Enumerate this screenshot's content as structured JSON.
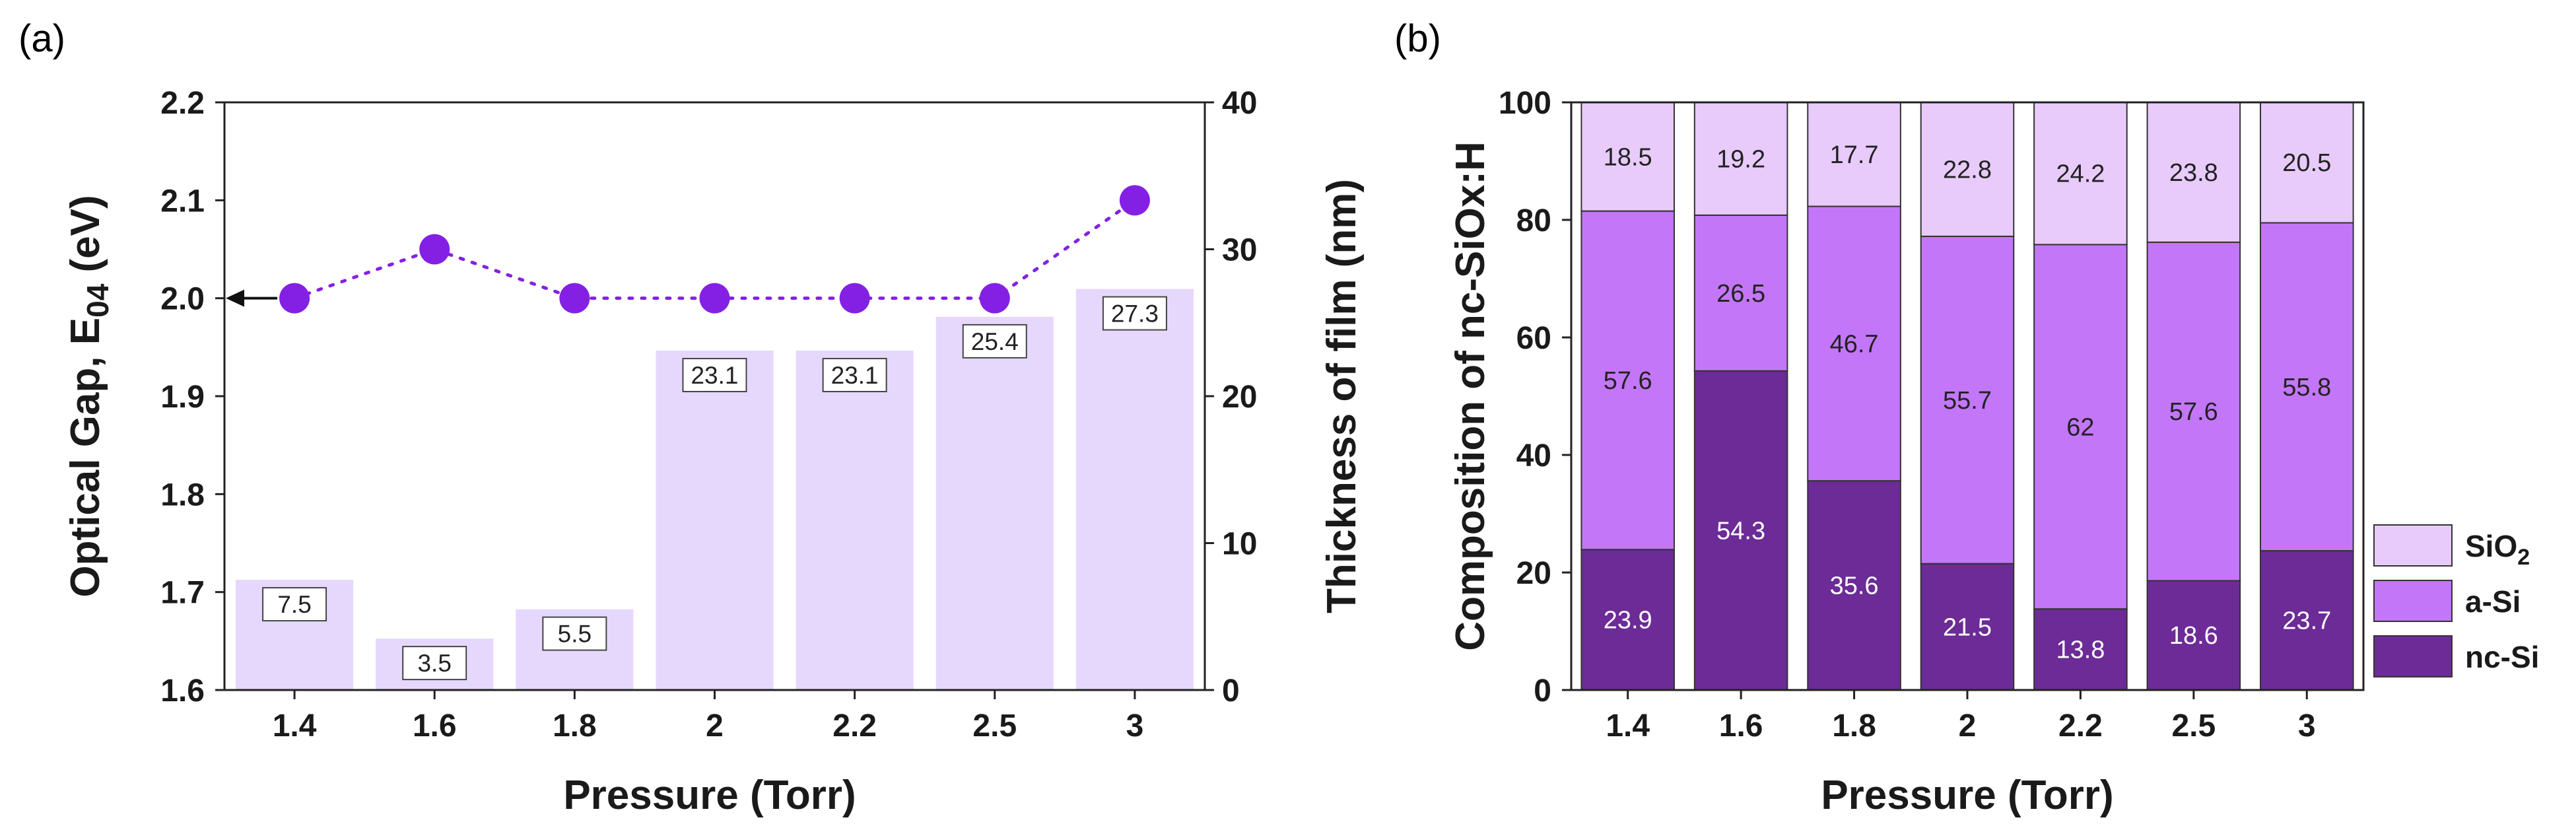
{
  "chart_data": [
    {
      "panel": "(a)",
      "type": "bar+line",
      "categories": [
        "1.4",
        "1.6",
        "1.8",
        "2",
        "2.2",
        "2.5",
        "3"
      ],
      "bars": {
        "name": "Thickness of film (nm)",
        "axis": "right",
        "values": [
          7.5,
          3.5,
          5.5,
          23.1,
          23.1,
          25.4,
          27.3
        ],
        "labels": [
          "7.5",
          "3.5",
          "5.5",
          "23.1",
          "23.1",
          "25.4",
          "27.3"
        ],
        "color": "#e6d8fd"
      },
      "line": {
        "name": "Optical Gap, E04 (eV)",
        "axis": "left",
        "values": [
          2.0,
          2.05,
          2.0,
          2.0,
          2.0,
          2.0,
          2.1
        ],
        "color": "#8420e4",
        "style": "dotted-with-markers"
      },
      "xlabel": "Pressure (Torr)",
      "ylabel_left": {
        "main": "Optical Gap, E",
        "sub": "04",
        "unit": " (eV)"
      },
      "ylabel_right": "Thickness of film (nm)",
      "ylim_left": [
        1.6,
        2.2
      ],
      "yticks_left": [
        "1.6",
        "1.7",
        "1.8",
        "1.9",
        "2.0",
        "2.1",
        "2.2"
      ],
      "ylim_right": [
        0,
        40
      ],
      "yticks_right": [
        "0",
        "10",
        "20",
        "30",
        "40"
      ],
      "annotation": "arrow pointing to left axis"
    },
    {
      "panel": "(b)",
      "type": "stacked-bar",
      "categories": [
        "1.4",
        "1.6",
        "1.8",
        "2",
        "2.2",
        "2.5",
        "3"
      ],
      "series": [
        {
          "name": "nc-Si",
          "values": [
            23.9,
            54.3,
            35.6,
            21.5,
            13.8,
            18.6,
            23.7
          ],
          "labels": [
            "23.9",
            "54.3",
            "35.6",
            "21.5",
            "13.8",
            "18.6",
            "23.7"
          ],
          "color": "#6c2b96",
          "label_color": "#ffffff"
        },
        {
          "name": "a-Si",
          "values": [
            57.6,
            26.5,
            46.7,
            55.7,
            62,
            57.6,
            55.8
          ],
          "labels": [
            "57.6",
            "26.5",
            "46.7",
            "55.7",
            "62",
            "57.6",
            "55.8"
          ],
          "color": "#c377f8",
          "label_color": "#222222"
        },
        {
          "name": "SiO2",
          "values": [
            18.5,
            19.2,
            17.7,
            22.8,
            24.2,
            23.8,
            20.5
          ],
          "labels": [
            "18.5",
            "19.2",
            "17.7",
            "22.8",
            "24.2",
            "23.8",
            "20.5"
          ],
          "color": "#e8cbfb",
          "label_color": "#222222"
        }
      ],
      "legend": [
        {
          "main": "SiO",
          "sub": "2"
        },
        {
          "main": "a-Si",
          "sub": ""
        },
        {
          "main": "nc-Si",
          "sub": ""
        }
      ],
      "legend_placement": "right-bottom",
      "xlabel": "Pressure (Torr)",
      "ylabel": "Composition of nc-SiOx:H",
      "ylim": [
        0,
        100
      ],
      "yticks": [
        "0",
        "20",
        "40",
        "60",
        "80",
        "100"
      ]
    }
  ]
}
